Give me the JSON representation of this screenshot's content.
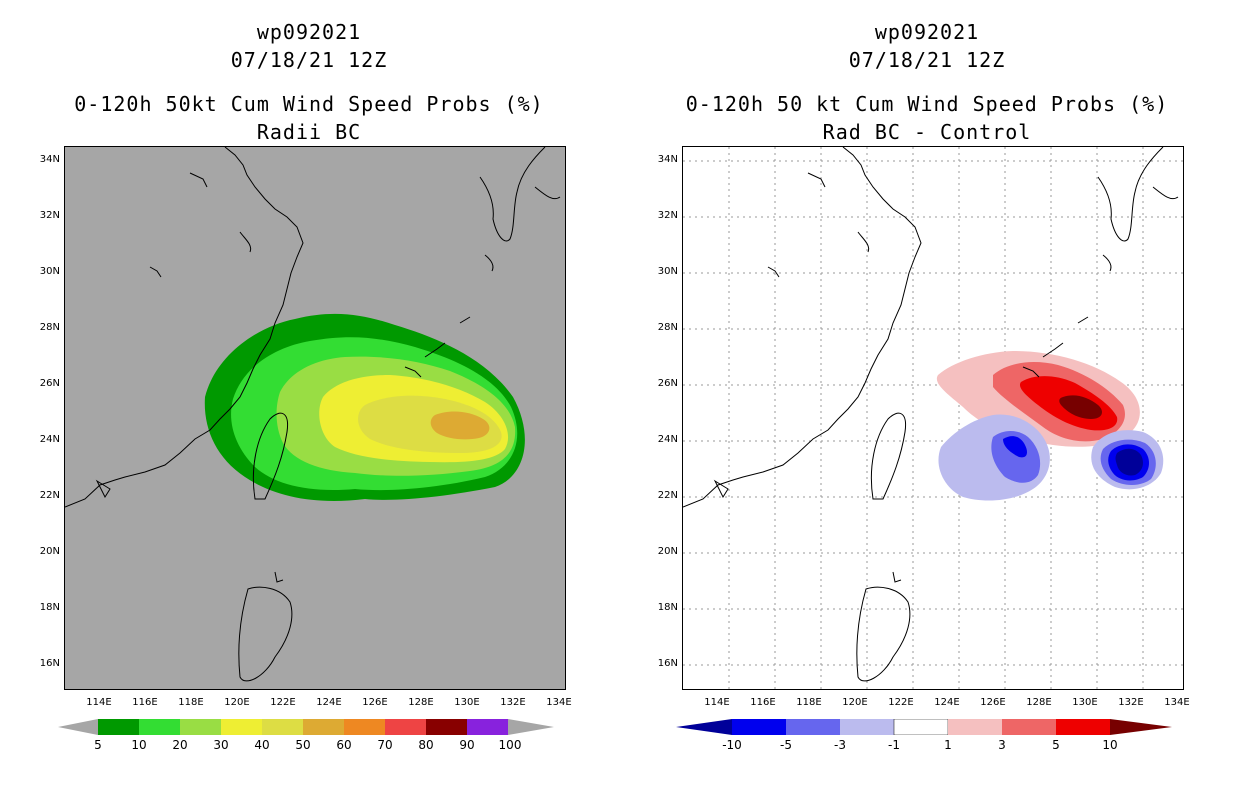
{
  "left": {
    "title1": "wp092021",
    "title2": "07/18/21 12Z",
    "title3": "0-120h 50kt Cum Wind Speed Probs (%)",
    "title4": "Radii BC",
    "background": "#a6a6a6",
    "colorbar": {
      "colors": [
        "#009900",
        "#33dd33",
        "#99dd44",
        "#eeee33",
        "#dddd44",
        "#ddaa33",
        "#ee8822",
        "#ee4444",
        "#880000",
        "#8822dd"
      ],
      "labels": [
        "5",
        "10",
        "20",
        "30",
        "40",
        "50",
        "60",
        "70",
        "80",
        "90",
        "100"
      ]
    }
  },
  "right": {
    "title1": "wp092021",
    "title2": "07/18/21 12Z",
    "title3": "0-120h 50 kt Cum Wind Speed Probs (%)",
    "title4": "Rad BC - Control",
    "background": "#ffffff",
    "colorbar": {
      "colors": [
        "#000099",
        "#0000ee",
        "#6666ee",
        "#bbbbee",
        "#ffffff",
        "#f5c0c0",
        "#ee6666",
        "#ee0000",
        "#770000"
      ],
      "labels": [
        "-10",
        "-5",
        "-3",
        "-1",
        "1",
        "3",
        "5",
        "10"
      ]
    }
  },
  "axes": {
    "lat_labels": [
      "34N",
      "32N",
      "30N",
      "28N",
      "26N",
      "24N",
      "22N",
      "20N",
      "18N",
      "16N"
    ],
    "lon_labels": [
      "114E",
      "116E",
      "118E",
      "120E",
      "122E",
      "124E",
      "126E",
      "128E",
      "130E",
      "132E",
      "134E"
    ]
  }
}
